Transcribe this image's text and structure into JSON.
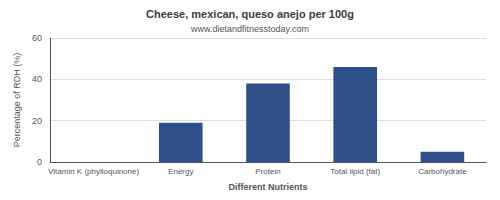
{
  "chart_data": {
    "type": "bar",
    "title": "Cheese, mexican, queso anejo per 100g",
    "subtitle": "www.dietandfitnesstoday.com",
    "xlabel": "Different Nutrients",
    "ylabel": "Percentage of RDH (%)",
    "categories": [
      "Vitamin K (phylloquinone)",
      "Energy",
      "Protein",
      "Total lipid (fat)",
      "Carbohydrate"
    ],
    "values": [
      0,
      19,
      38,
      46,
      5
    ],
    "color": "#2e4f8a",
    "ylim": [
      0,
      60
    ],
    "yticks": [
      0,
      20,
      40,
      60
    ],
    "grid": true
  }
}
